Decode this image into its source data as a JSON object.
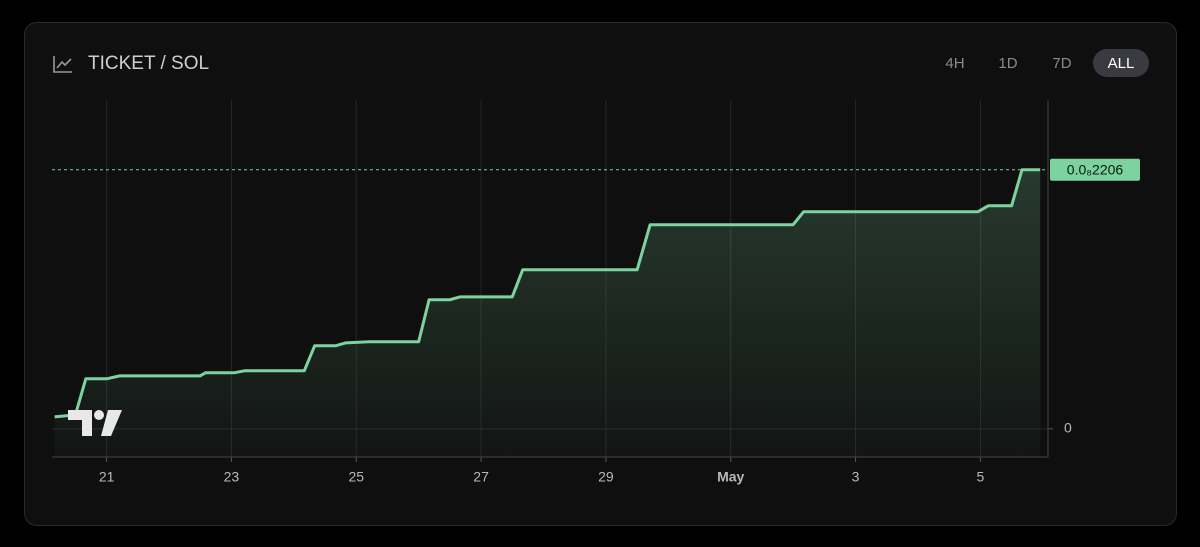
{
  "chart_data": {
    "type": "line",
    "title": "TICKET / SOL",
    "range_buttons": [
      "4H",
      "1D",
      "7D",
      "ALL"
    ],
    "active_range": "ALL",
    "x": [
      "04-20 04:00",
      "04-20 12:00",
      "04-20 16:00",
      "04-21 00:00",
      "04-21 05:00",
      "04-22 12:00",
      "04-22 14:00",
      "04-23 01:00",
      "04-23 05:00",
      "04-24 04:00",
      "04-24 08:00",
      "04-24 16:00",
      "04-24 20:00",
      "04-25 05:00",
      "04-26 00:00",
      "04-26 04:00",
      "04-26 12:00",
      "04-26 16:00",
      "04-27 12:00",
      "04-27 16:00",
      "04-29 12:00",
      "04-29 17:00",
      "05-02 00:00",
      "05-02 04:00",
      "05-04 23:00",
      "05-05 03:00",
      "05-05 12:00",
      "05-05 16:00",
      "05-05 23:00"
    ],
    "values": [
      1.02e-10,
      1.19e-10,
      4.26e-10,
      4.26e-10,
      4.51e-10,
      4.51e-10,
      4.77e-10,
      4.77e-10,
      4.94e-10,
      4.94e-10,
      7.07e-10,
      7.07e-10,
      7.32e-10,
      7.41e-10,
      7.41e-10,
      1.099e-09,
      1.099e-09,
      1.124e-09,
      1.124e-09,
      1.354e-09,
      1.354e-09,
      1.738e-09,
      1.738e-09,
      1.848e-09,
      1.848e-09,
      1.899e-09,
      1.899e-09,
      2.206e-09,
      2.206e-09
    ],
    "last_value_label": "0.0₈2206",
    "color": "#7dd3a0",
    "xlim": [
      "04-20 03:00",
      "05-06 02:00"
    ],
    "xticks": [
      {
        "value": "04-21 00:00",
        "label": "21"
      },
      {
        "value": "04-23 00:00",
        "label": "23"
      },
      {
        "value": "04-25 00:00",
        "label": "25"
      },
      {
        "value": "04-27 00:00",
        "label": "27"
      },
      {
        "value": "04-29 00:00",
        "label": "29"
      },
      {
        "value": "05-01 00:00",
        "label": "May"
      },
      {
        "value": "05-03 00:00",
        "label": "3"
      },
      {
        "value": "05-05 00:00",
        "label": "5"
      }
    ],
    "ylim": [
      -2.4e-10,
      2.8e-09
    ],
    "yticks": [
      0
    ],
    "grid": true
  }
}
